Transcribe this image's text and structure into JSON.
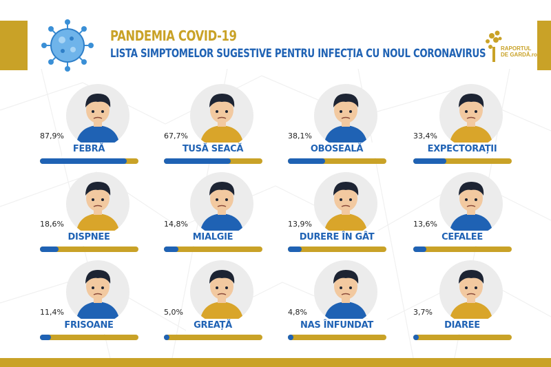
{
  "header": {
    "title": "PANDEMIA COVID-19",
    "subtitle": "LISTA SIMPTOMELOR SUGESTIVE PENTRU INFECȚIA CU NOUL CORONAVIRUS",
    "logo_line1": "RAPORTUL",
    "logo_line2": "DE GARDĂ.ro"
  },
  "colors": {
    "gold": "#c9a227",
    "blue": "#1f62b4"
  },
  "chart_data": {
    "type": "bar",
    "unit": "%",
    "categories": [
      "FEBRĂ",
      "TUSĂ SEACĂ",
      "OBOSEALĂ",
      "EXPECTORAȚII",
      "DISPNEE",
      "MIALGIE",
      "DURERE ÎN GÂT",
      "CEFALEE",
      "FRISOANE",
      "GREAȚĂ",
      "NAS ÎNFUNDAT",
      "DIAREE"
    ],
    "values": [
      87.9,
      67.7,
      38.1,
      33.4,
      18.6,
      14.8,
      13.9,
      13.6,
      11.4,
      5.0,
      4.8,
      3.7
    ],
    "value_labels": [
      "87,9%",
      "67,7%",
      "38,1%",
      "33,4%",
      "18,6%",
      "14,8%",
      "13,9%",
      "13,6%",
      "11,4%",
      "5,0%",
      "4,8%",
      "3,7%"
    ],
    "ylim": [
      0,
      100
    ],
    "icons": [
      "fever-person-icon",
      "dry-cough-person-icon",
      "tired-person-icon",
      "expectoration-person-icon",
      "dyspnea-person-icon",
      "myalgia-person-icon",
      "sore-throat-person-icon",
      "headache-person-icon",
      "chills-person-icon",
      "nausea-person-icon",
      "stuffy-nose-person-icon",
      "diarrhea-person-icon"
    ]
  }
}
